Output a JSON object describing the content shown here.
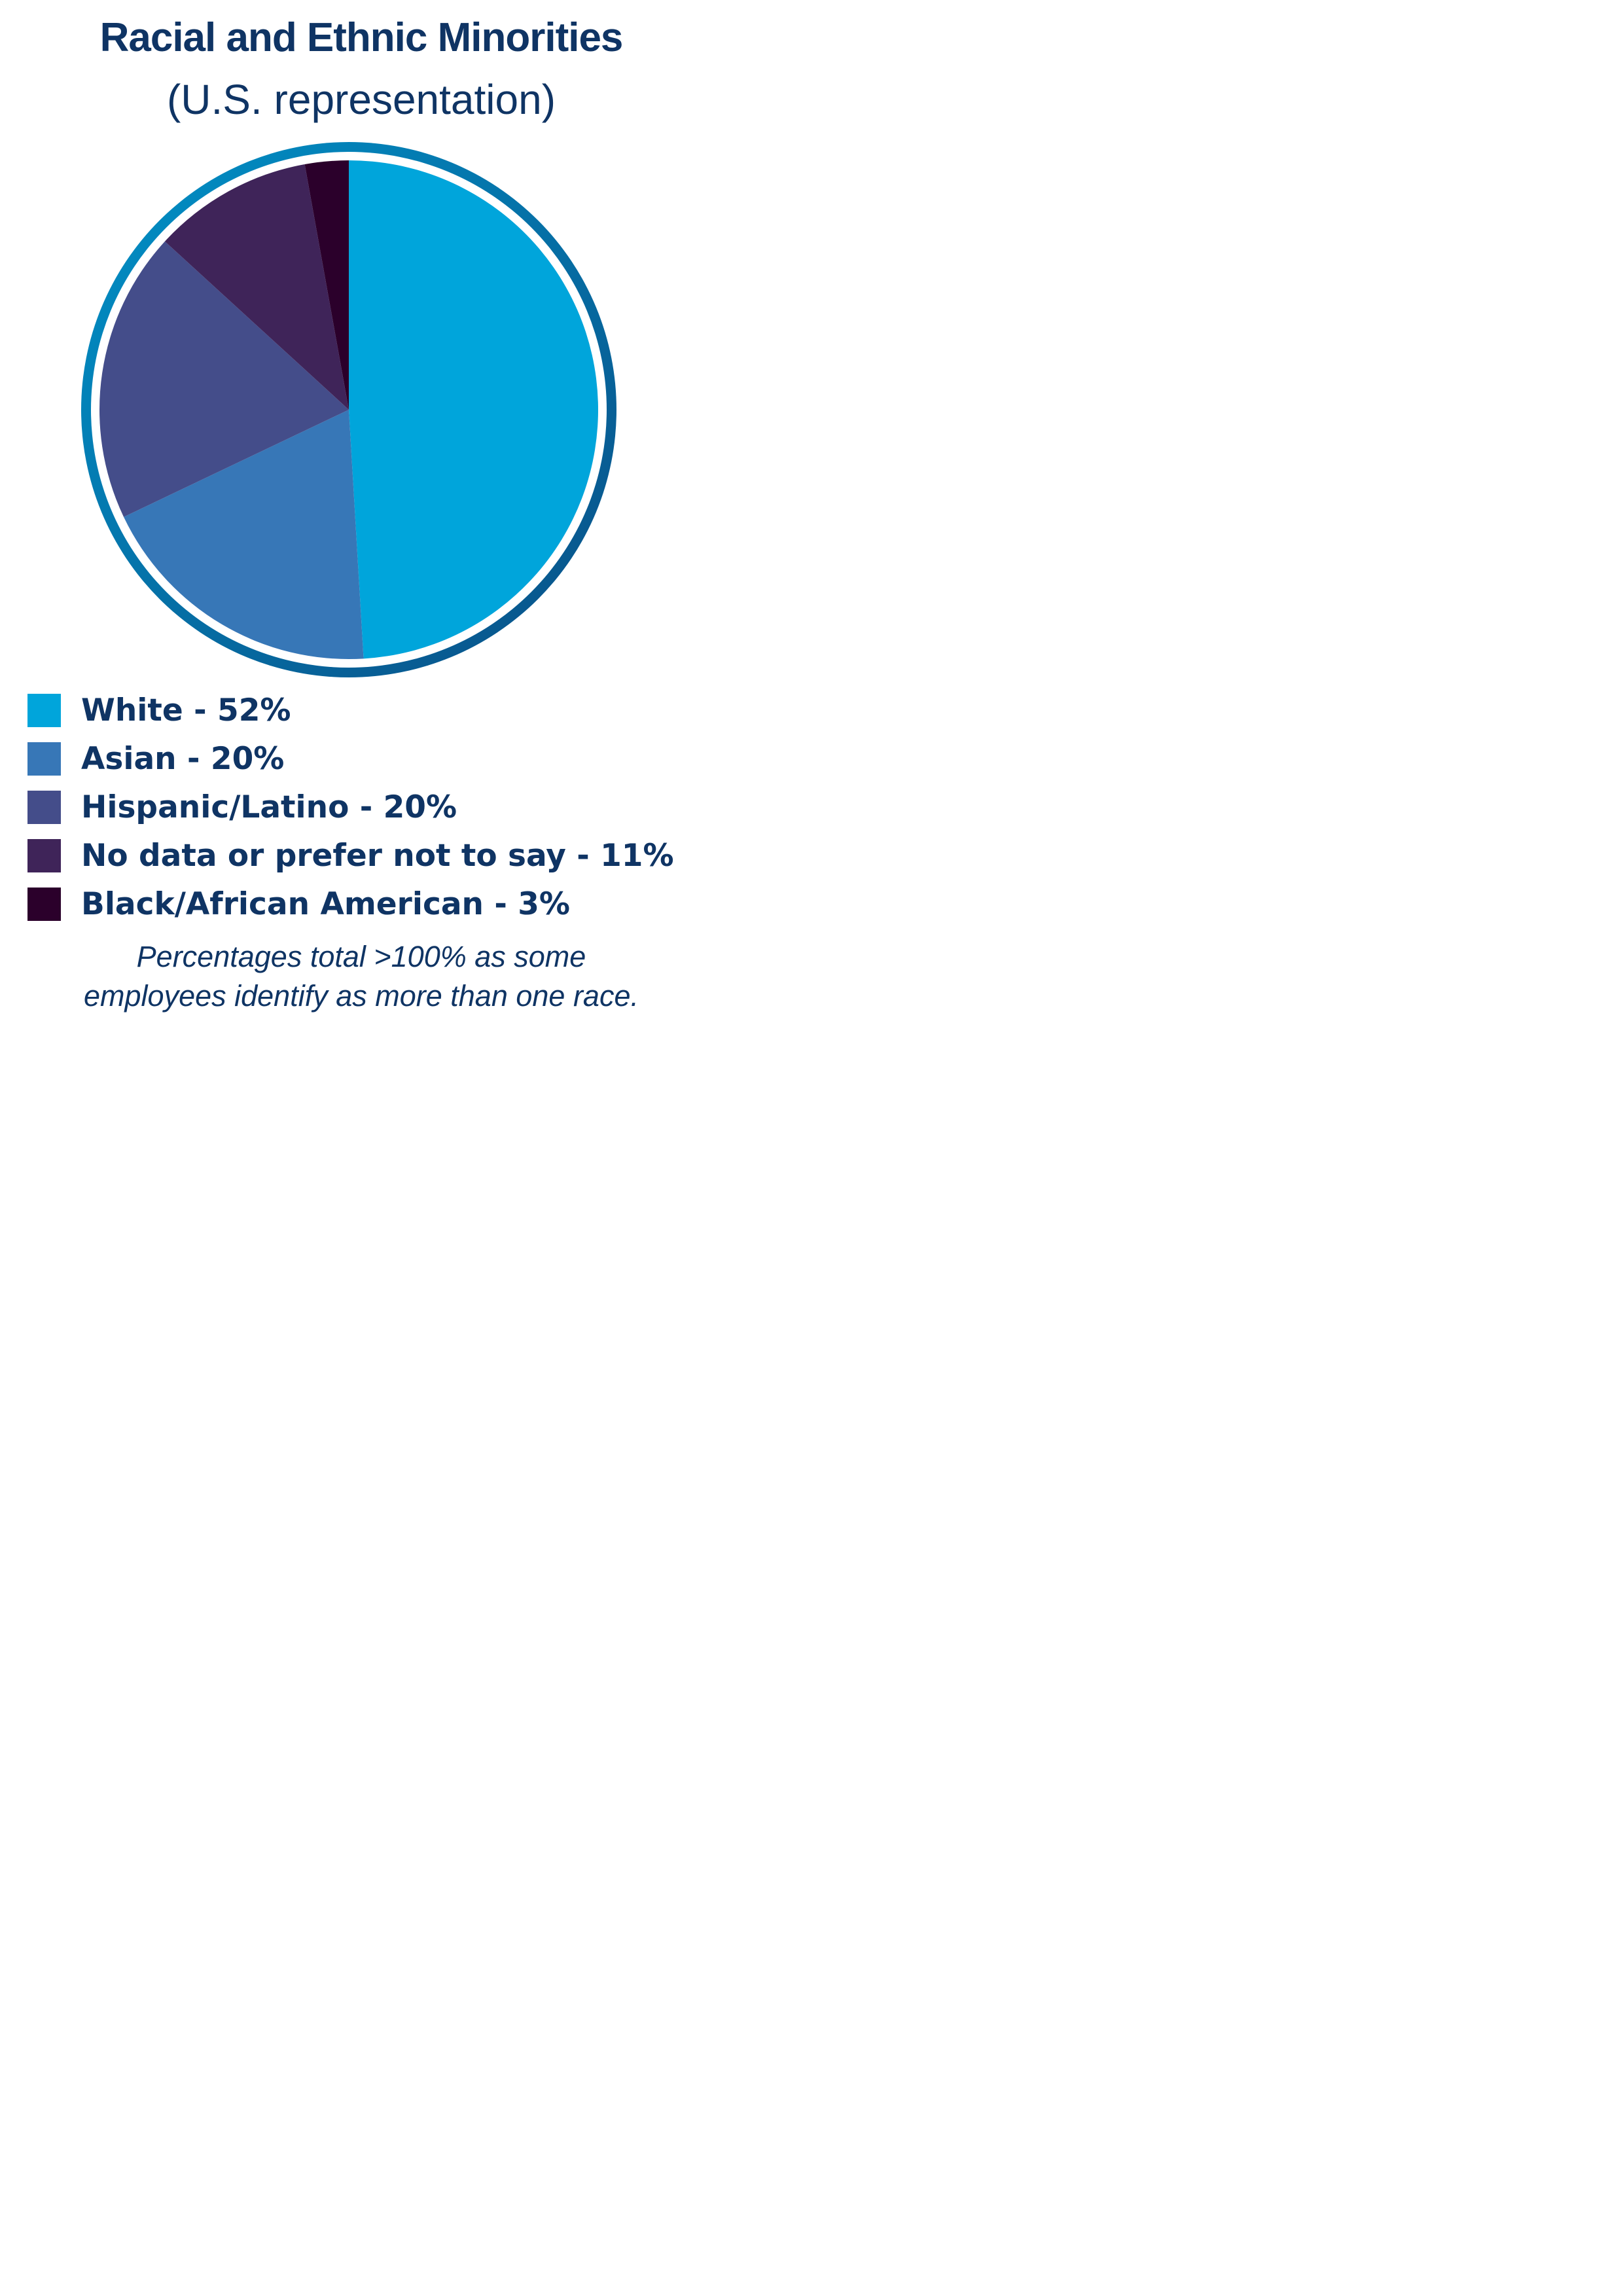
{
  "title": "Racial and Ethnic Minorities",
  "subtitle": "(U.S. representation)",
  "colors": {
    "ring_gradient_start": "#0092c8",
    "ring_gradient_end": "#0a4f86",
    "text": "#0f3464"
  },
  "chart_data": {
    "type": "pie",
    "title": "Racial and Ethnic Minorities",
    "subtitle": "(U.S. representation)",
    "legend_position": "bottom",
    "slices": [
      {
        "label": "White - 52%",
        "category": "White",
        "value": 52,
        "color": "#00a5db"
      },
      {
        "label": "Asian - 20%",
        "category": "Asian",
        "value": 20,
        "color": "#3777b7"
      },
      {
        "label": "Hispanic/Latino - 20%",
        "category": "Hispanic/Latino",
        "value": 20,
        "color": "#444d8a"
      },
      {
        "label": "No data or prefer not to say - 11%",
        "category": "No data or prefer not to say",
        "value": 11,
        "color": "#3f2459"
      },
      {
        "label": "Black/African American - 3%",
        "category": "Black/African American",
        "value": 3,
        "color": "#2b002b"
      }
    ]
  },
  "footnote": {
    "line1": "Percentages total >100% as some",
    "line2": "employees identify as more than one race."
  }
}
